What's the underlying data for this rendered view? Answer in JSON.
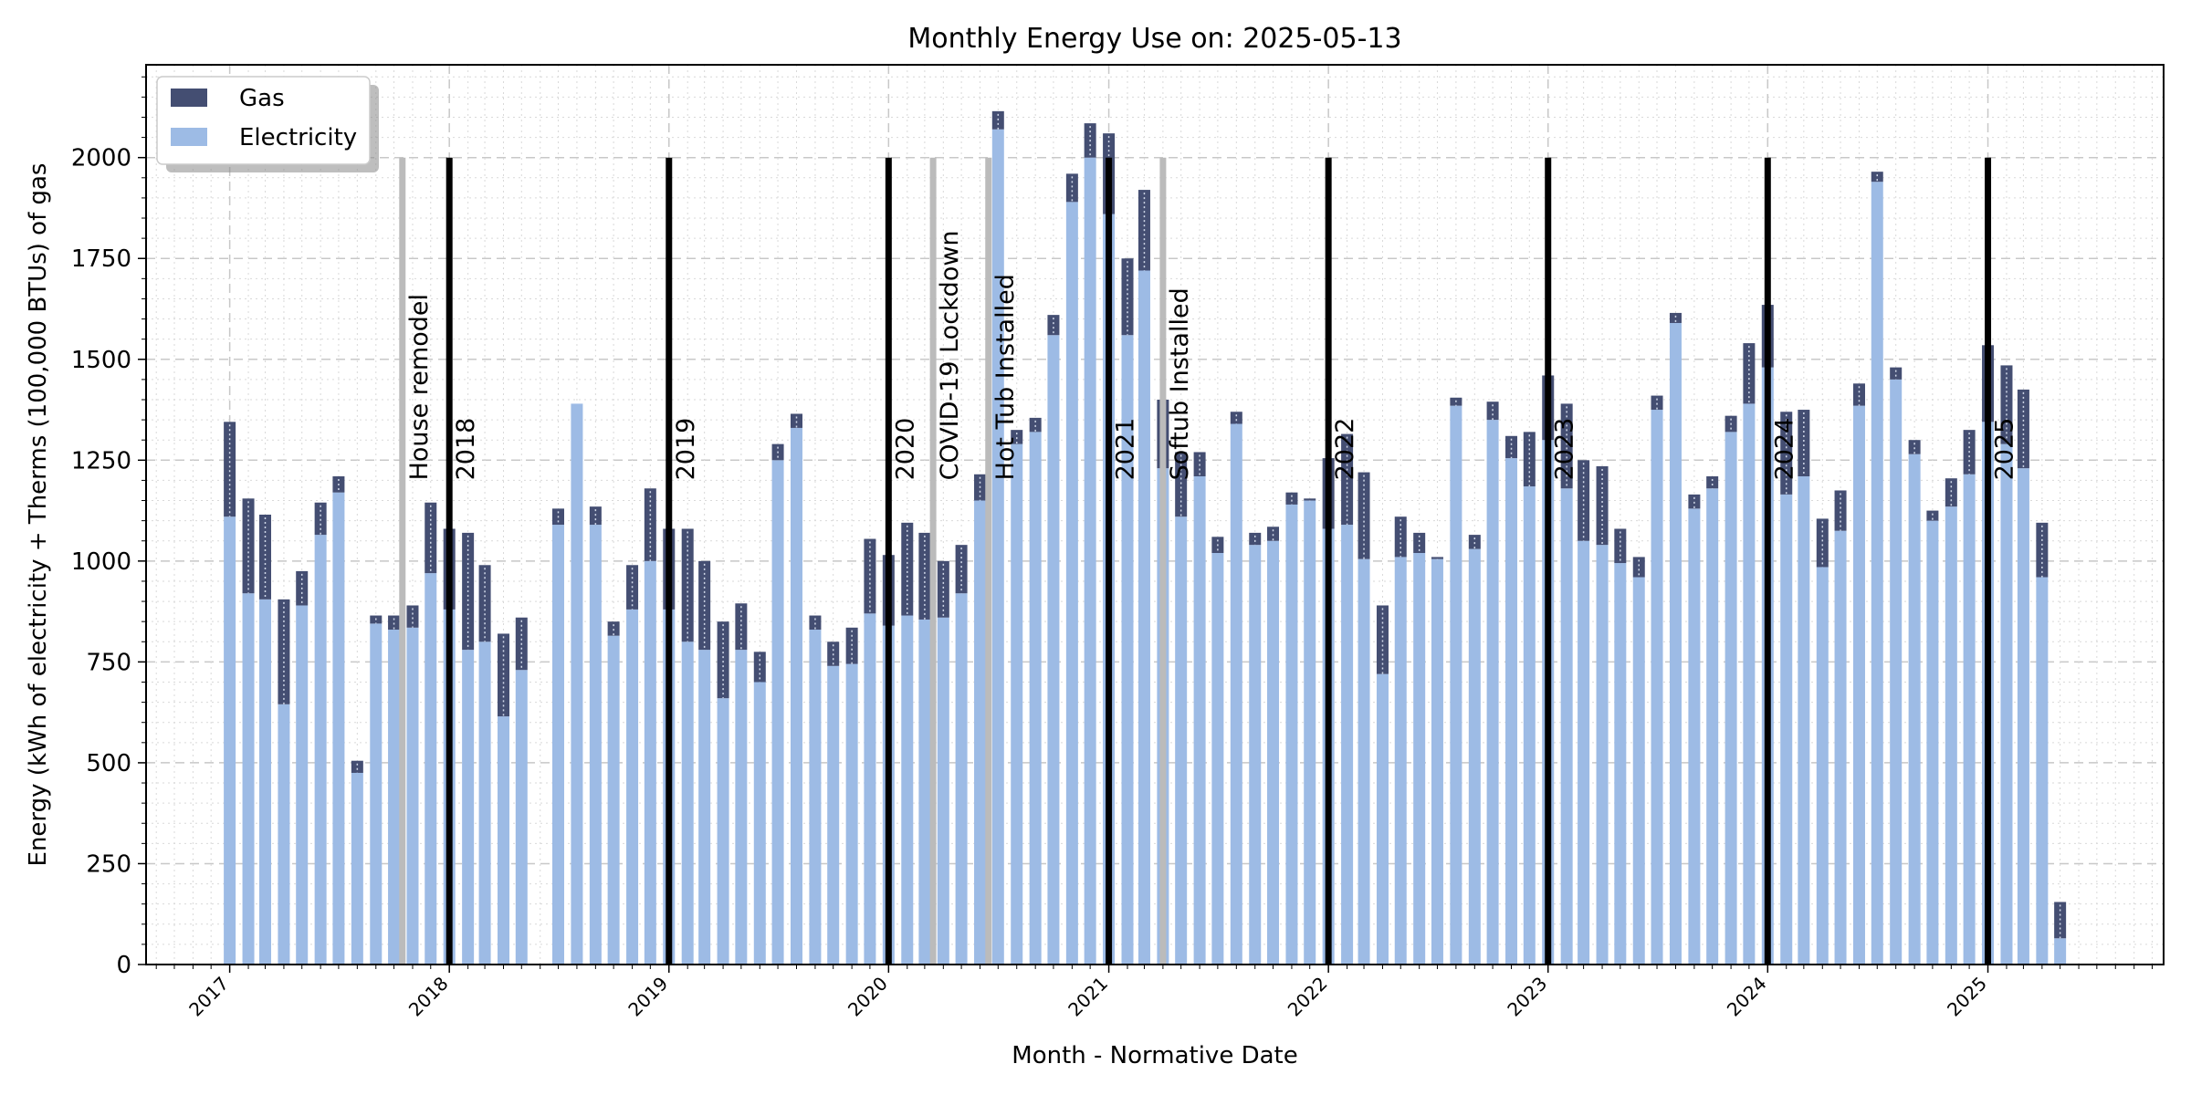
{
  "chart_data": {
    "type": "bar",
    "stacked": true,
    "title": "Monthly Energy Use on: 2025-05-13",
    "xlabel": "Month - Normative Date",
    "ylabel": "Energy (kWh of electricity + Therms (100,000 BTUs) of gas",
    "ylim": [
      0,
      2230
    ],
    "xlim": [
      "2016-08-15",
      "2025-10-20"
    ],
    "yticks": [
      0,
      250,
      500,
      750,
      1000,
      1250,
      1500,
      1750,
      2000
    ],
    "xticks": [
      "2017",
      "2018",
      "2019",
      "2020",
      "2021",
      "2022",
      "2023",
      "2024",
      "2025"
    ],
    "grid": true,
    "legend": "top-left",
    "colors": {
      "gas": "#444e72",
      "electricity": "#9dbbe5",
      "year_marker": "#000000",
      "event_marker": "#bbbbbb"
    },
    "series": [
      {
        "name": "Gas",
        "stack_order": 2
      },
      {
        "name": "Electricity",
        "stack_order": 1
      }
    ],
    "months": [
      {
        "date": "2017-01",
        "electricity": 1110,
        "gas": 235
      },
      {
        "date": "2017-02",
        "electricity": 920,
        "gas": 235
      },
      {
        "date": "2017-03",
        "electricity": 905,
        "gas": 210
      },
      {
        "date": "2017-04",
        "electricity": 645,
        "gas": 260
      },
      {
        "date": "2017-05",
        "electricity": 890,
        "gas": 85
      },
      {
        "date": "2017-06",
        "electricity": 1065,
        "gas": 80
      },
      {
        "date": "2017-07",
        "electricity": 1170,
        "gas": 40
      },
      {
        "date": "2017-08",
        "electricity": 475,
        "gas": 30
      },
      {
        "date": "2017-09",
        "electricity": 845,
        "gas": 20
      },
      {
        "date": "2017-10",
        "electricity": 830,
        "gas": 35
      },
      {
        "date": "2017-11",
        "electricity": 835,
        "gas": 55
      },
      {
        "date": "2017-12",
        "electricity": 970,
        "gas": 175
      },
      {
        "date": "2018-01",
        "electricity": 880,
        "gas": 200
      },
      {
        "date": "2018-02",
        "electricity": 780,
        "gas": 290
      },
      {
        "date": "2018-03",
        "electricity": 800,
        "gas": 190
      },
      {
        "date": "2018-04",
        "electricity": 615,
        "gas": 205
      },
      {
        "date": "2018-05",
        "electricity": 730,
        "gas": 130
      },
      {
        "date": "2018-06",
        "electricity": 0,
        "gas": 0
      },
      {
        "date": "2018-07",
        "electricity": 1090,
        "gas": 40
      },
      {
        "date": "2018-08",
        "electricity": 1390,
        "gas": 0
      },
      {
        "date": "2018-09",
        "electricity": 1090,
        "gas": 45
      },
      {
        "date": "2018-10",
        "electricity": 815,
        "gas": 35
      },
      {
        "date": "2018-11",
        "electricity": 880,
        "gas": 110
      },
      {
        "date": "2018-12",
        "electricity": 1000,
        "gas": 180
      },
      {
        "date": "2019-01",
        "electricity": 880,
        "gas": 200
      },
      {
        "date": "2019-02",
        "electricity": 800,
        "gas": 280
      },
      {
        "date": "2019-03",
        "electricity": 780,
        "gas": 220
      },
      {
        "date": "2019-04",
        "electricity": 660,
        "gas": 190
      },
      {
        "date": "2019-05",
        "electricity": 780,
        "gas": 115
      },
      {
        "date": "2019-06",
        "electricity": 700,
        "gas": 75
      },
      {
        "date": "2019-07",
        "electricity": 1250,
        "gas": 40
      },
      {
        "date": "2019-08",
        "electricity": 1330,
        "gas": 35
      },
      {
        "date": "2019-09",
        "electricity": 830,
        "gas": 35
      },
      {
        "date": "2019-10",
        "electricity": 740,
        "gas": 60
      },
      {
        "date": "2019-11",
        "electricity": 745,
        "gas": 90
      },
      {
        "date": "2019-12",
        "electricity": 870,
        "gas": 185
      },
      {
        "date": "2020-01",
        "electricity": 840,
        "gas": 175
      },
      {
        "date": "2020-02",
        "electricity": 865,
        "gas": 230
      },
      {
        "date": "2020-03",
        "electricity": 855,
        "gas": 215
      },
      {
        "date": "2020-04",
        "electricity": 860,
        "gas": 140
      },
      {
        "date": "2020-05",
        "electricity": 920,
        "gas": 120
      },
      {
        "date": "2020-06",
        "electricity": 1150,
        "gas": 65
      },
      {
        "date": "2020-07",
        "electricity": 2070,
        "gas": 45
      },
      {
        "date": "2020-08",
        "electricity": 1290,
        "gas": 35
      },
      {
        "date": "2020-09",
        "electricity": 1320,
        "gas": 35
      },
      {
        "date": "2020-10",
        "electricity": 1560,
        "gas": 50
      },
      {
        "date": "2020-11",
        "electricity": 1890,
        "gas": 70
      },
      {
        "date": "2020-12",
        "electricity": 2000,
        "gas": 85
      },
      {
        "date": "2021-01",
        "electricity": 1860,
        "gas": 200
      },
      {
        "date": "2021-02",
        "electricity": 1560,
        "gas": 190
      },
      {
        "date": "2021-03",
        "electricity": 1720,
        "gas": 200
      },
      {
        "date": "2021-04",
        "electricity": 1230,
        "gas": 170
      },
      {
        "date": "2021-05",
        "electricity": 1110,
        "gas": 160
      },
      {
        "date": "2021-06",
        "electricity": 1210,
        "gas": 60
      },
      {
        "date": "2021-07",
        "electricity": 1020,
        "gas": 40
      },
      {
        "date": "2021-08",
        "electricity": 1340,
        "gas": 30
      },
      {
        "date": "2021-09",
        "electricity": 1040,
        "gas": 30
      },
      {
        "date": "2021-10",
        "electricity": 1050,
        "gas": 35
      },
      {
        "date": "2021-11",
        "electricity": 1140,
        "gas": 30
      },
      {
        "date": "2021-12",
        "electricity": 1150,
        "gas": 5
      },
      {
        "date": "2022-01",
        "electricity": 1080,
        "gas": 175
      },
      {
        "date": "2022-02",
        "electricity": 1090,
        "gas": 225
      },
      {
        "date": "2022-03",
        "electricity": 1005,
        "gas": 215
      },
      {
        "date": "2022-04",
        "electricity": 720,
        "gas": 170
      },
      {
        "date": "2022-05",
        "electricity": 1010,
        "gas": 100
      },
      {
        "date": "2022-06",
        "electricity": 1020,
        "gas": 50
      },
      {
        "date": "2022-07",
        "electricity": 1005,
        "gas": 5
      },
      {
        "date": "2022-08",
        "electricity": 1385,
        "gas": 20
      },
      {
        "date": "2022-09",
        "electricity": 1030,
        "gas": 35
      },
      {
        "date": "2022-10",
        "electricity": 1350,
        "gas": 45
      },
      {
        "date": "2022-11",
        "electricity": 1255,
        "gas": 55
      },
      {
        "date": "2022-12",
        "electricity": 1185,
        "gas": 135
      },
      {
        "date": "2023-01",
        "electricity": 1300,
        "gas": 160
      },
      {
        "date": "2023-02",
        "electricity": 1180,
        "gas": 210
      },
      {
        "date": "2023-03",
        "electricity": 1050,
        "gas": 200
      },
      {
        "date": "2023-04",
        "electricity": 1040,
        "gas": 195
      },
      {
        "date": "2023-05",
        "electricity": 995,
        "gas": 85
      },
      {
        "date": "2023-06",
        "electricity": 960,
        "gas": 50
      },
      {
        "date": "2023-07",
        "electricity": 1375,
        "gas": 35
      },
      {
        "date": "2023-08",
        "electricity": 1590,
        "gas": 25
      },
      {
        "date": "2023-09",
        "electricity": 1130,
        "gas": 35
      },
      {
        "date": "2023-10",
        "electricity": 1180,
        "gas": 30
      },
      {
        "date": "2023-11",
        "electricity": 1320,
        "gas": 40
      },
      {
        "date": "2023-12",
        "electricity": 1390,
        "gas": 150
      },
      {
        "date": "2024-01",
        "electricity": 1480,
        "gas": 155
      },
      {
        "date": "2024-02",
        "electricity": 1165,
        "gas": 205
      },
      {
        "date": "2024-03",
        "electricity": 1210,
        "gas": 165
      },
      {
        "date": "2024-04",
        "electricity": 985,
        "gas": 120
      },
      {
        "date": "2024-05",
        "electricity": 1075,
        "gas": 100
      },
      {
        "date": "2024-06",
        "electricity": 1385,
        "gas": 55
      },
      {
        "date": "2024-07",
        "electricity": 1940,
        "gas": 25
      },
      {
        "date": "2024-08",
        "electricity": 1450,
        "gas": 30
      },
      {
        "date": "2024-09",
        "electricity": 1265,
        "gas": 35
      },
      {
        "date": "2024-10",
        "electricity": 1100,
        "gas": 25
      },
      {
        "date": "2024-11",
        "electricity": 1135,
        "gas": 70
      },
      {
        "date": "2024-12",
        "electricity": 1215,
        "gas": 110
      },
      {
        "date": "2025-01",
        "electricity": 1345,
        "gas": 190
      },
      {
        "date": "2025-02",
        "electricity": 1290,
        "gas": 195
      },
      {
        "date": "2025-03",
        "electricity": 1230,
        "gas": 195
      },
      {
        "date": "2025-04",
        "electricity": 960,
        "gas": 135
      },
      {
        "date": "2025-05",
        "electricity": 65,
        "gas": 90
      }
    ],
    "year_markers": [
      {
        "label": "2018",
        "date": "2018-01-01"
      },
      {
        "label": "2019",
        "date": "2019-01-01"
      },
      {
        "label": "2020",
        "date": "2020-01-01"
      },
      {
        "label": "2021",
        "date": "2021-01-01"
      },
      {
        "label": "2022",
        "date": "2022-01-01"
      },
      {
        "label": "2023",
        "date": "2023-01-01"
      },
      {
        "label": "2024",
        "date": "2024-01-01"
      },
      {
        "label": "2025",
        "date": "2025-01-01"
      }
    ],
    "event_markers": [
      {
        "label": "House remodel",
        "date": "2017-10-15"
      },
      {
        "label": "COVID-19 Lockdown",
        "date": "2020-03-15"
      },
      {
        "label": "Hot Tub Installed",
        "date": "2020-06-15"
      },
      {
        "label": "Softub Installed",
        "date": "2021-04-01"
      }
    ],
    "marker_top_value": 2000
  }
}
